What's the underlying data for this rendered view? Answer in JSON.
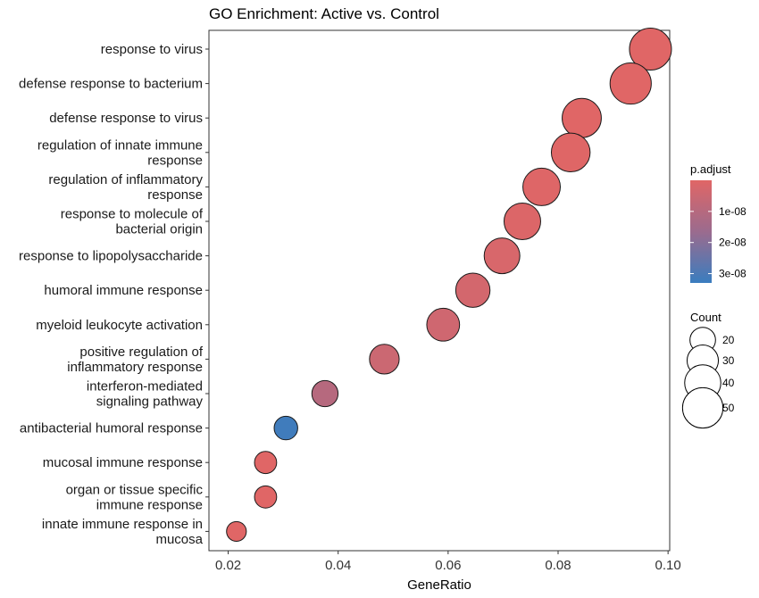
{
  "chart_data": {
    "type": "scatter",
    "title": "GO Enrichment: Active vs. Control",
    "xlabel": "GeneRatio",
    "ylabel": "",
    "xlim": [
      0.0165,
      0.1003
    ],
    "x_ticks": [
      "0.02",
      "0.04",
      "0.06",
      "0.08",
      "0.10"
    ],
    "x_tick_values": [
      0.02,
      0.04,
      0.06,
      0.08,
      0.1
    ],
    "grid": false,
    "categories": [
      "response to virus",
      "defense response to bacterium",
      "defense response to virus",
      "regulation of innate immune response",
      "regulation of inflammatory response",
      "response to molecule of bacterial origin",
      "response to lipopolysaccharide",
      "humoral immune response",
      "myeloid leukocyte activation",
      "positive regulation of inflammatory response",
      "interferon-mediated signaling pathway",
      "antibacterial humoral response",
      "mucosal immune response",
      "organ or tissue specific immune response",
      "innate immune response in mucosa"
    ],
    "category_lines": [
      [
        "response to virus"
      ],
      [
        "defense response to bacterium"
      ],
      [
        "defense response to virus"
      ],
      [
        "regulation of innate immune",
        "response"
      ],
      [
        "regulation of inflammatory",
        "response"
      ],
      [
        "response to molecule of",
        "bacterial origin"
      ],
      [
        "response to lipopolysaccharide"
      ],
      [
        "humoral immune response"
      ],
      [
        "myeloid leukocyte activation"
      ],
      [
        "positive regulation of",
        "inflammatory response"
      ],
      [
        "interferon-mediated",
        "signaling pathway"
      ],
      [
        "antibacterial humoral response"
      ],
      [
        "mucosal immune response"
      ],
      [
        "organ or tissue specific",
        "immune response"
      ],
      [
        "innate immune response in",
        "mucosa"
      ]
    ],
    "x": [
      0.0968,
      0.0932,
      0.0843,
      0.0823,
      0.077,
      0.0735,
      0.0698,
      0.0645,
      0.0591,
      0.0484,
      0.0376,
      0.0305,
      0.0268,
      0.0268,
      0.0215
    ],
    "count": [
      54,
      52,
      47,
      46,
      43,
      41,
      39,
      36,
      33,
      27,
      21,
      17,
      15,
      15,
      12
    ],
    "p_adjust": [
      1e-12,
      1e-12,
      5e-11,
      2e-10,
      5e-10,
      1e-09,
      2e-09,
      3e-09,
      4e-09,
      5e-09,
      1e-08,
      3.2e-08,
      1e-11,
      1e-11,
      1e-11
    ],
    "color_legend": {
      "title": "p.adjust",
      "labels": [
        "1e-08",
        "2e-08",
        "3e-08"
      ],
      "values": [
        1e-08,
        2e-08,
        3e-08
      ],
      "range": [
        0,
        3.3e-08
      ],
      "low_color": "#e06666",
      "high_color": "#3a7dbf"
    },
    "size_legend": {
      "title": "Count",
      "labels": [
        "20",
        "30",
        "40",
        "50"
      ],
      "values": [
        20,
        30,
        40,
        50
      ]
    },
    "legend_position": "right"
  }
}
